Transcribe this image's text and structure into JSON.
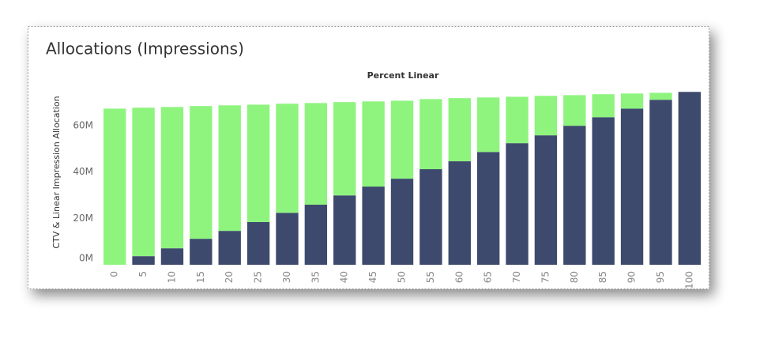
{
  "chart_data": {
    "type": "stacked_bar",
    "title": "Allocations (Impressions)",
    "x_label": "Percent Linear",
    "y_label": "CTV & Linear Impression Allocation",
    "categories": [
      "0",
      "5",
      "10",
      "15",
      "20",
      "25",
      "30",
      "35",
      "40",
      "45",
      "50",
      "55",
      "60",
      "65",
      "70",
      "75",
      "80",
      "85",
      "90",
      "95",
      "100"
    ],
    "series": [
      {
        "color": "#3d4a6d",
        "values": [
          0,
          3700000,
          7100000,
          11200000,
          14600000,
          18400000,
          22400000,
          25900000,
          29900000,
          33700000,
          37100000,
          41200000,
          44600000,
          48600000,
          52400000,
          55800000,
          59900000,
          63600000,
          67300000,
          71100000,
          74500000
        ]
      },
      {
        "color": "#8ef47e",
        "values": [
          67300000,
          64000000,
          60900000,
          57200000,
          54100000,
          50600000,
          47000000,
          43800000,
          40200000,
          36700000,
          33600000,
          30200000,
          27200000,
          23500000,
          20000000,
          17000000,
          13200000,
          9900000,
          6500000,
          3000000,
          0
        ]
      }
    ],
    "ylim": [
      0,
      78000000
    ],
    "yticks": [
      {
        "value": 0,
        "label": "0M"
      },
      {
        "value": 20000000,
        "label": "20M"
      },
      {
        "value": 40000000,
        "label": "40M"
      },
      {
        "value": 60000000,
        "label": "60M"
      }
    ],
    "grid": false
  }
}
